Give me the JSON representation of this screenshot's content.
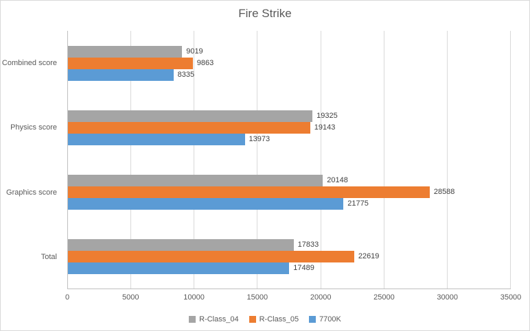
{
  "chart_data": {
    "type": "bar",
    "orientation": "horizontal",
    "title": "Fire Strike",
    "categories": [
      "Combined score",
      "Physics score",
      "Graphics score",
      "Total"
    ],
    "series": [
      {
        "name": "R-Class_04",
        "color": "#a5a5a5",
        "values": [
          9019,
          19325,
          20148,
          17833
        ]
      },
      {
        "name": "R-Class_05",
        "color": "#ed7d31",
        "values": [
          9863,
          19143,
          28588,
          22619
        ]
      },
      {
        "name": "7700K",
        "color": "#5b9bd5",
        "values": [
          8335,
          13973,
          21775,
          17489
        ]
      }
    ],
    "xlim": [
      0,
      35000
    ],
    "x_ticks": [
      0,
      5000,
      10000,
      15000,
      20000,
      25000,
      30000,
      35000
    ],
    "grid": "vertical",
    "legend_position": "bottom",
    "colors": {
      "gridline": "#d9d9d9",
      "axis_line": "#bfbfbf",
      "axis_text": "#595959",
      "data_label": "#404040"
    }
  }
}
